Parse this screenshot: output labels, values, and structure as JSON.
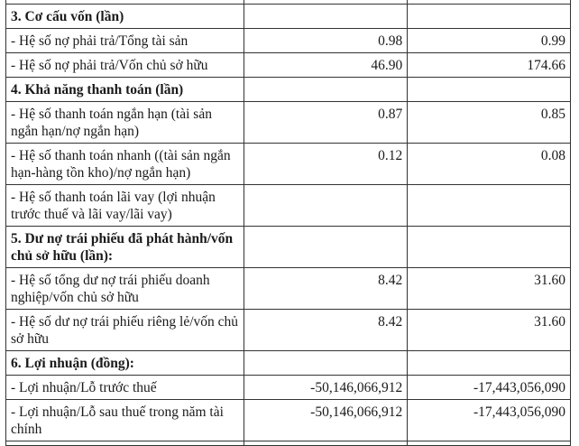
{
  "rows": [
    {
      "type": "stub",
      "label": "",
      "v1": "",
      "v2": ""
    },
    {
      "type": "head",
      "label": "3. Cơ cấu vốn (lần)",
      "v1": "",
      "v2": ""
    },
    {
      "type": "item",
      "label": "- Hệ số nợ phải trả/Tổng tài sản",
      "v1": "0.98",
      "v2": "0.99"
    },
    {
      "type": "item",
      "label": "- Hệ số nợ phải trả/Vốn chủ sở hữu",
      "v1": "46.90",
      "v2": "174.66"
    },
    {
      "type": "head",
      "label": "4. Khả năng thanh toán (lần)",
      "v1": "",
      "v2": ""
    },
    {
      "type": "item2",
      "label": "- Hệ số thanh toán ngắn hạn (tài sản ngắn hạn/nợ ngắn hạn)",
      "v1": "0.87",
      "v2": "0.85"
    },
    {
      "type": "item2",
      "label": "- Hệ số thanh toán nhanh ((tài sản ngắn hạn-hàng tồn kho)/nợ ngắn hạn)",
      "v1": "0.12",
      "v2": "0.08"
    },
    {
      "type": "item2",
      "label": "- Hệ số thanh toán lãi vay (lợi nhuận trước thuế và lãi vay/lãi vay)",
      "v1": "",
      "v2": ""
    },
    {
      "type": "head2",
      "label": "5. Dư nợ trái phiếu đã phát hành/vốn chủ sở hữu (lần):",
      "v1": "",
      "v2": ""
    },
    {
      "type": "item2",
      "label": "- Hệ số tổng dư nợ trái phiếu doanh nghiệp/vốn chủ sở hữu",
      "v1": "8.42",
      "v2": "31.60"
    },
    {
      "type": "item2",
      "label": "- Hệ số dư nợ trái phiếu riêng lẻ/vốn chủ sở hữu",
      "v1": "8.42",
      "v2": "31.60"
    },
    {
      "type": "head",
      "label": "6. Lợi nhuận (đồng):",
      "v1": "",
      "v2": ""
    },
    {
      "type": "item",
      "label": "- Lợi nhuận/Lỗ trước thuế",
      "v1": "-50,146,066,912",
      "v2": "-17,443,056,090"
    },
    {
      "type": "item2",
      "label": "- Lợi nhuận/Lỗ sau thuế trong năm tài chính",
      "v1": "-50,146,066,912",
      "v2": "-17,443,056,090"
    },
    {
      "type": "stub",
      "label": "",
      "v1": "",
      "v2": ""
    }
  ]
}
